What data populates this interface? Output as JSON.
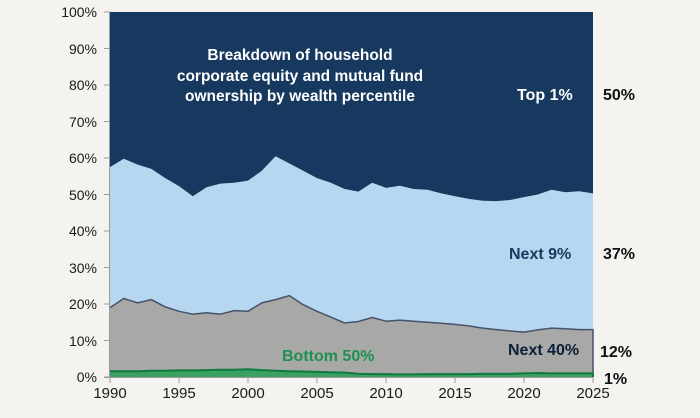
{
  "page": {
    "background": "#f4f3f0",
    "axis_color": "#9b9b9b",
    "tick_label_color": "#1a1a1a",
    "end_value_color": "#111111"
  },
  "chart_data": {
    "type": "area",
    "stacked": true,
    "unit": "percent",
    "title": "Breakdown of household\ncorporate equity and mutual fund\nownership by wealth percentile",
    "xlim": [
      1990,
      2025
    ],
    "ylim": [
      0,
      100
    ],
    "grid": false,
    "legend_position": "inline-labels",
    "x": [
      1990,
      1991,
      1992,
      1993,
      1994,
      1995,
      1996,
      1997,
      1998,
      1999,
      2000,
      2001,
      2002,
      2003,
      2004,
      2005,
      2006,
      2007,
      2008,
      2009,
      2010,
      2011,
      2012,
      2013,
      2014,
      2015,
      2016,
      2017,
      2018,
      2019,
      2020,
      2021,
      2022,
      2023,
      2024,
      2025
    ],
    "x_ticks": [
      "1990",
      "1995",
      "2000",
      "2005",
      "2010",
      "2015",
      "2020",
      "2025"
    ],
    "x_tick_years": [
      1990,
      1995,
      2000,
      2005,
      2010,
      2015,
      2020,
      2025
    ],
    "y_ticks": [
      "0%",
      "10%",
      "20%",
      "30%",
      "40%",
      "50%",
      "60%",
      "70%",
      "80%",
      "90%",
      "100%"
    ],
    "series": [
      {
        "name": "bottom-50",
        "label": "Bottom 50%",
        "end_label": "1%",
        "fill": "#3aa163",
        "stroke": "#0f7a3e",
        "label_color": "#1d9150",
        "values": [
          1.6,
          1.6,
          1.6,
          1.7,
          1.7,
          1.8,
          1.8,
          1.9,
          2.0,
          2.0,
          2.1,
          1.9,
          1.7,
          1.6,
          1.5,
          1.4,
          1.3,
          1.2,
          0.9,
          0.8,
          0.8,
          0.7,
          0.7,
          0.8,
          0.8,
          0.8,
          0.8,
          0.9,
          0.9,
          0.9,
          1.0,
          1.1,
          1.0,
          1.0,
          1.0,
          1.0
        ]
      },
      {
        "name": "next-40",
        "label": "Next 40%",
        "end_label": "12%",
        "fill": "#a8a8a6",
        "stroke": "#46536a",
        "label_color": "#0c1f3a",
        "values": [
          17.4,
          19.9,
          18.7,
          19.5,
          17.5,
          16.2,
          15.4,
          15.7,
          15.2,
          16.2,
          15.9,
          18.4,
          19.5,
          20.7,
          18.3,
          16.6,
          15.1,
          13.6,
          14.3,
          15.5,
          14.5,
          14.9,
          14.6,
          14.2,
          13.9,
          13.6,
          13.2,
          12.5,
          12.1,
          11.7,
          11.3,
          11.8,
          12.4,
          12.2,
          12.0,
          12.0
        ]
      },
      {
        "name": "next-9",
        "label": "Next 9%",
        "end_label": "37%",
        "fill": "#b7d7f0",
        "stroke": "",
        "label_color": "#17395e",
        "values": [
          38.5,
          38.3,
          37.9,
          35.8,
          35.3,
          34.3,
          32.3,
          34.4,
          35.8,
          35.0,
          35.8,
          36.2,
          39.3,
          36.2,
          36.7,
          36.5,
          36.8,
          36.7,
          35.6,
          36.9,
          36.5,
          36.8,
          36.2,
          36.3,
          35.6,
          35.1,
          34.8,
          34.9,
          35.2,
          35.9,
          37.0,
          37.1,
          37.9,
          37.4,
          37.9,
          37.3
        ]
      },
      {
        "name": "top-1",
        "label": "Top 1%",
        "end_label": "50%",
        "fill": "#17395f",
        "stroke": "",
        "label_color": "#ffffff",
        "values": [
          42.5,
          40.2,
          41.8,
          43.0,
          45.5,
          47.7,
          50.5,
          48.0,
          47.0,
          46.8,
          46.2,
          43.5,
          39.5,
          41.5,
          43.5,
          45.5,
          46.8,
          48.5,
          49.2,
          46.8,
          48.2,
          47.6,
          48.5,
          48.7,
          49.7,
          50.5,
          51.2,
          51.7,
          51.8,
          51.5,
          50.7,
          50.0,
          48.7,
          49.4,
          49.1,
          49.7
        ]
      }
    ]
  }
}
